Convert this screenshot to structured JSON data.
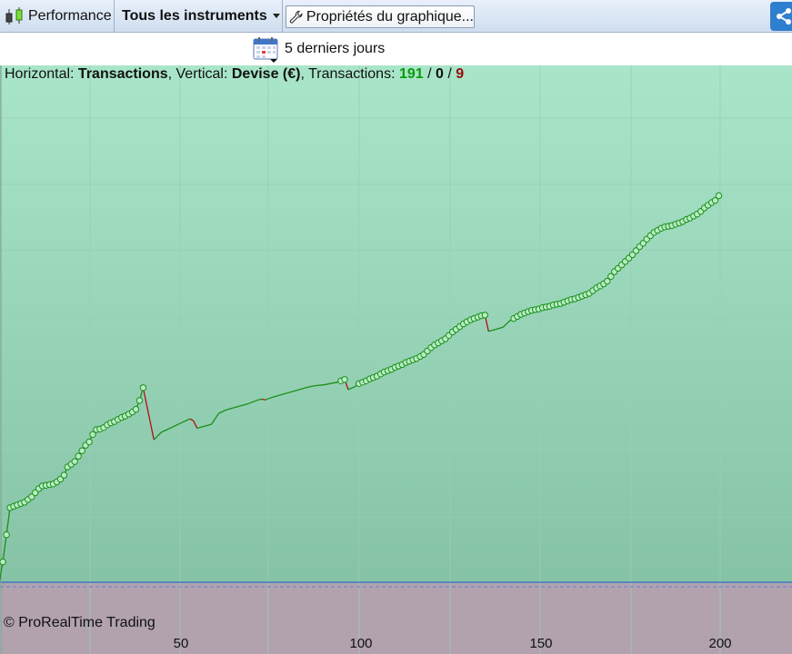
{
  "toolbar": {
    "performance_label": "Performance",
    "instruments_label": "Tous les instruments",
    "properties_label": "Propriétés du graphique..."
  },
  "period": {
    "label": "5 derniers jours"
  },
  "info": {
    "horizontal_prefix": "Horizontal: ",
    "horizontal_value": "Transactions",
    "vertical_prefix": ", Vertical: ",
    "vertical_value": "Devise (€)",
    "transactions_prefix": ", Transactions: ",
    "winning": "191",
    "sep1": " / ",
    "neutral": "0",
    "sep2": " / ",
    "losing": "9"
  },
  "copyright": "© ProRealTime Trading",
  "colors": {
    "positive_line": "#1a8f1a",
    "negative_line": "#b01010",
    "marker_fill": "#b8ecc4",
    "zero_line": "#3a63c8"
  },
  "chart_data": {
    "type": "line",
    "xlabel": "Transactions",
    "ylabel": "Devise (€)",
    "x_ticks": [
      50,
      100,
      150,
      200
    ],
    "xlim": [
      0,
      219
    ],
    "grid": true,
    "points": [
      [
        1,
        3
      ],
      [
        2,
        7
      ],
      [
        3,
        11
      ],
      [
        4,
        11.2
      ],
      [
        5,
        11.4
      ],
      [
        6,
        11.6
      ],
      [
        7,
        11.8
      ],
      [
        8,
        12.2
      ],
      [
        9,
        12.6
      ],
      [
        10,
        13.2
      ],
      [
        11,
        13.8
      ],
      [
        12,
        14.2
      ],
      [
        13,
        14.3
      ],
      [
        14,
        14.4
      ],
      [
        15,
        14.5
      ],
      [
        16,
        14.8
      ],
      [
        17,
        15.2
      ],
      [
        18,
        15.8
      ],
      [
        19,
        17.0
      ],
      [
        20,
        17.4
      ],
      [
        21,
        17.8
      ],
      [
        22,
        18.6
      ],
      [
        23,
        19.4
      ],
      [
        24,
        20.2
      ],
      [
        25,
        20.7
      ],
      [
        26,
        21.8
      ],
      [
        27,
        22.5
      ],
      [
        28,
        22.6
      ],
      [
        29,
        22.8
      ],
      [
        30,
        23.2
      ],
      [
        31,
        23.5
      ],
      [
        32,
        23.7
      ],
      [
        33,
        24.0
      ],
      [
        34,
        24.3
      ],
      [
        35,
        24.5
      ],
      [
        36,
        24.8
      ],
      [
        37,
        25.1
      ],
      [
        38,
        25.5
      ],
      [
        39,
        26.8
      ],
      [
        40,
        28.7
      ],
      [
        43,
        21.0
      ],
      [
        45,
        22.1
      ],
      [
        47,
        22.6
      ],
      [
        49,
        23.1
      ],
      [
        51,
        23.6
      ],
      [
        53,
        24.1
      ],
      [
        54,
        23.8
      ],
      [
        55,
        22.7
      ],
      [
        57,
        23.0
      ],
      [
        59,
        23.3
      ],
      [
        61,
        24.9
      ],
      [
        63,
        25.4
      ],
      [
        65,
        25.7
      ],
      [
        67,
        26.0
      ],
      [
        69,
        26.3
      ],
      [
        71,
        26.7
      ],
      [
        72,
        26.9
      ],
      [
        73,
        27.0
      ],
      [
        74,
        26.9
      ],
      [
        76,
        27.3
      ],
      [
        78,
        27.6
      ],
      [
        80,
        27.9
      ],
      [
        82,
        28.2
      ],
      [
        84,
        28.5
      ],
      [
        86,
        28.8
      ],
      [
        88,
        29.0
      ],
      [
        90,
        29.1
      ],
      [
        92,
        29.3
      ],
      [
        94,
        29.5
      ],
      [
        95,
        29.7
      ],
      [
        96,
        29.9
      ],
      [
        97,
        28.4
      ],
      [
        99,
        28.9
      ],
      [
        100,
        29.3
      ],
      [
        101,
        29.5
      ],
      [
        102,
        29.7
      ],
      [
        103,
        30.0
      ],
      [
        104,
        30.2
      ],
      [
        105,
        30.4
      ],
      [
        106,
        30.7
      ],
      [
        107,
        31.0
      ],
      [
        108,
        31.2
      ],
      [
        109,
        31.4
      ],
      [
        110,
        31.7
      ],
      [
        111,
        31.9
      ],
      [
        112,
        32.1
      ],
      [
        113,
        32.4
      ],
      [
        114,
        32.6
      ],
      [
        115,
        32.8
      ],
      [
        116,
        33.0
      ],
      [
        117,
        33.3
      ],
      [
        118,
        33.6
      ],
      [
        119,
        34.1
      ],
      [
        120,
        34.6
      ],
      [
        121,
        35.0
      ],
      [
        122,
        35.3
      ],
      [
        123,
        35.6
      ],
      [
        124,
        35.9
      ],
      [
        125,
        36.4
      ],
      [
        126,
        36.9
      ],
      [
        127,
        37.3
      ],
      [
        128,
        37.7
      ],
      [
        129,
        38.1
      ],
      [
        130,
        38.4
      ],
      [
        131,
        38.7
      ],
      [
        132,
        38.9
      ],
      [
        133,
        39.1
      ],
      [
        134,
        39.3
      ],
      [
        135,
        39.4
      ],
      [
        136,
        37.0
      ],
      [
        138,
        37.3
      ],
      [
        140,
        37.6
      ],
      [
        142,
        38.6
      ],
      [
        143,
        38.9
      ],
      [
        144,
        39.2
      ],
      [
        145,
        39.5
      ],
      [
        146,
        39.7
      ],
      [
        147,
        39.9
      ],
      [
        148,
        40.1
      ],
      [
        149,
        40.2
      ],
      [
        150,
        40.3
      ],
      [
        151,
        40.5
      ],
      [
        152,
        40.6
      ],
      [
        153,
        40.7
      ],
      [
        154,
        40.9
      ],
      [
        155,
        41.0
      ],
      [
        156,
        41.1
      ],
      [
        157,
        41.3
      ],
      [
        158,
        41.5
      ],
      [
        159,
        41.7
      ],
      [
        160,
        41.8
      ],
      [
        161,
        42.0
      ],
      [
        162,
        42.2
      ],
      [
        163,
        42.4
      ],
      [
        164,
        42.6
      ],
      [
        165,
        43.0
      ],
      [
        166,
        43.4
      ],
      [
        167,
        43.7
      ],
      [
        168,
        44.0
      ],
      [
        169,
        44.4
      ],
      [
        170,
        45.1
      ],
      [
        171,
        45.8
      ],
      [
        172,
        46.3
      ],
      [
        173,
        46.8
      ],
      [
        174,
        47.3
      ],
      [
        175,
        47.8
      ],
      [
        176,
        48.3
      ],
      [
        177,
        48.9
      ],
      [
        178,
        49.5
      ],
      [
        179,
        50.0
      ],
      [
        180,
        50.6
      ],
      [
        181,
        51.1
      ],
      [
        182,
        51.6
      ],
      [
        183,
        51.9
      ],
      [
        184,
        52.2
      ],
      [
        185,
        52.4
      ],
      [
        186,
        52.5
      ],
      [
        187,
        52.6
      ],
      [
        188,
        52.8
      ],
      [
        189,
        53.0
      ],
      [
        190,
        53.2
      ],
      [
        191,
        53.5
      ],
      [
        192,
        53.7
      ],
      [
        193,
        54.0
      ],
      [
        194,
        54.3
      ],
      [
        195,
        54.7
      ],
      [
        196,
        55.2
      ],
      [
        197,
        55.6
      ],
      [
        198,
        56.0
      ],
      [
        199,
        56.3
      ],
      [
        200,
        57.0
      ]
    ]
  }
}
